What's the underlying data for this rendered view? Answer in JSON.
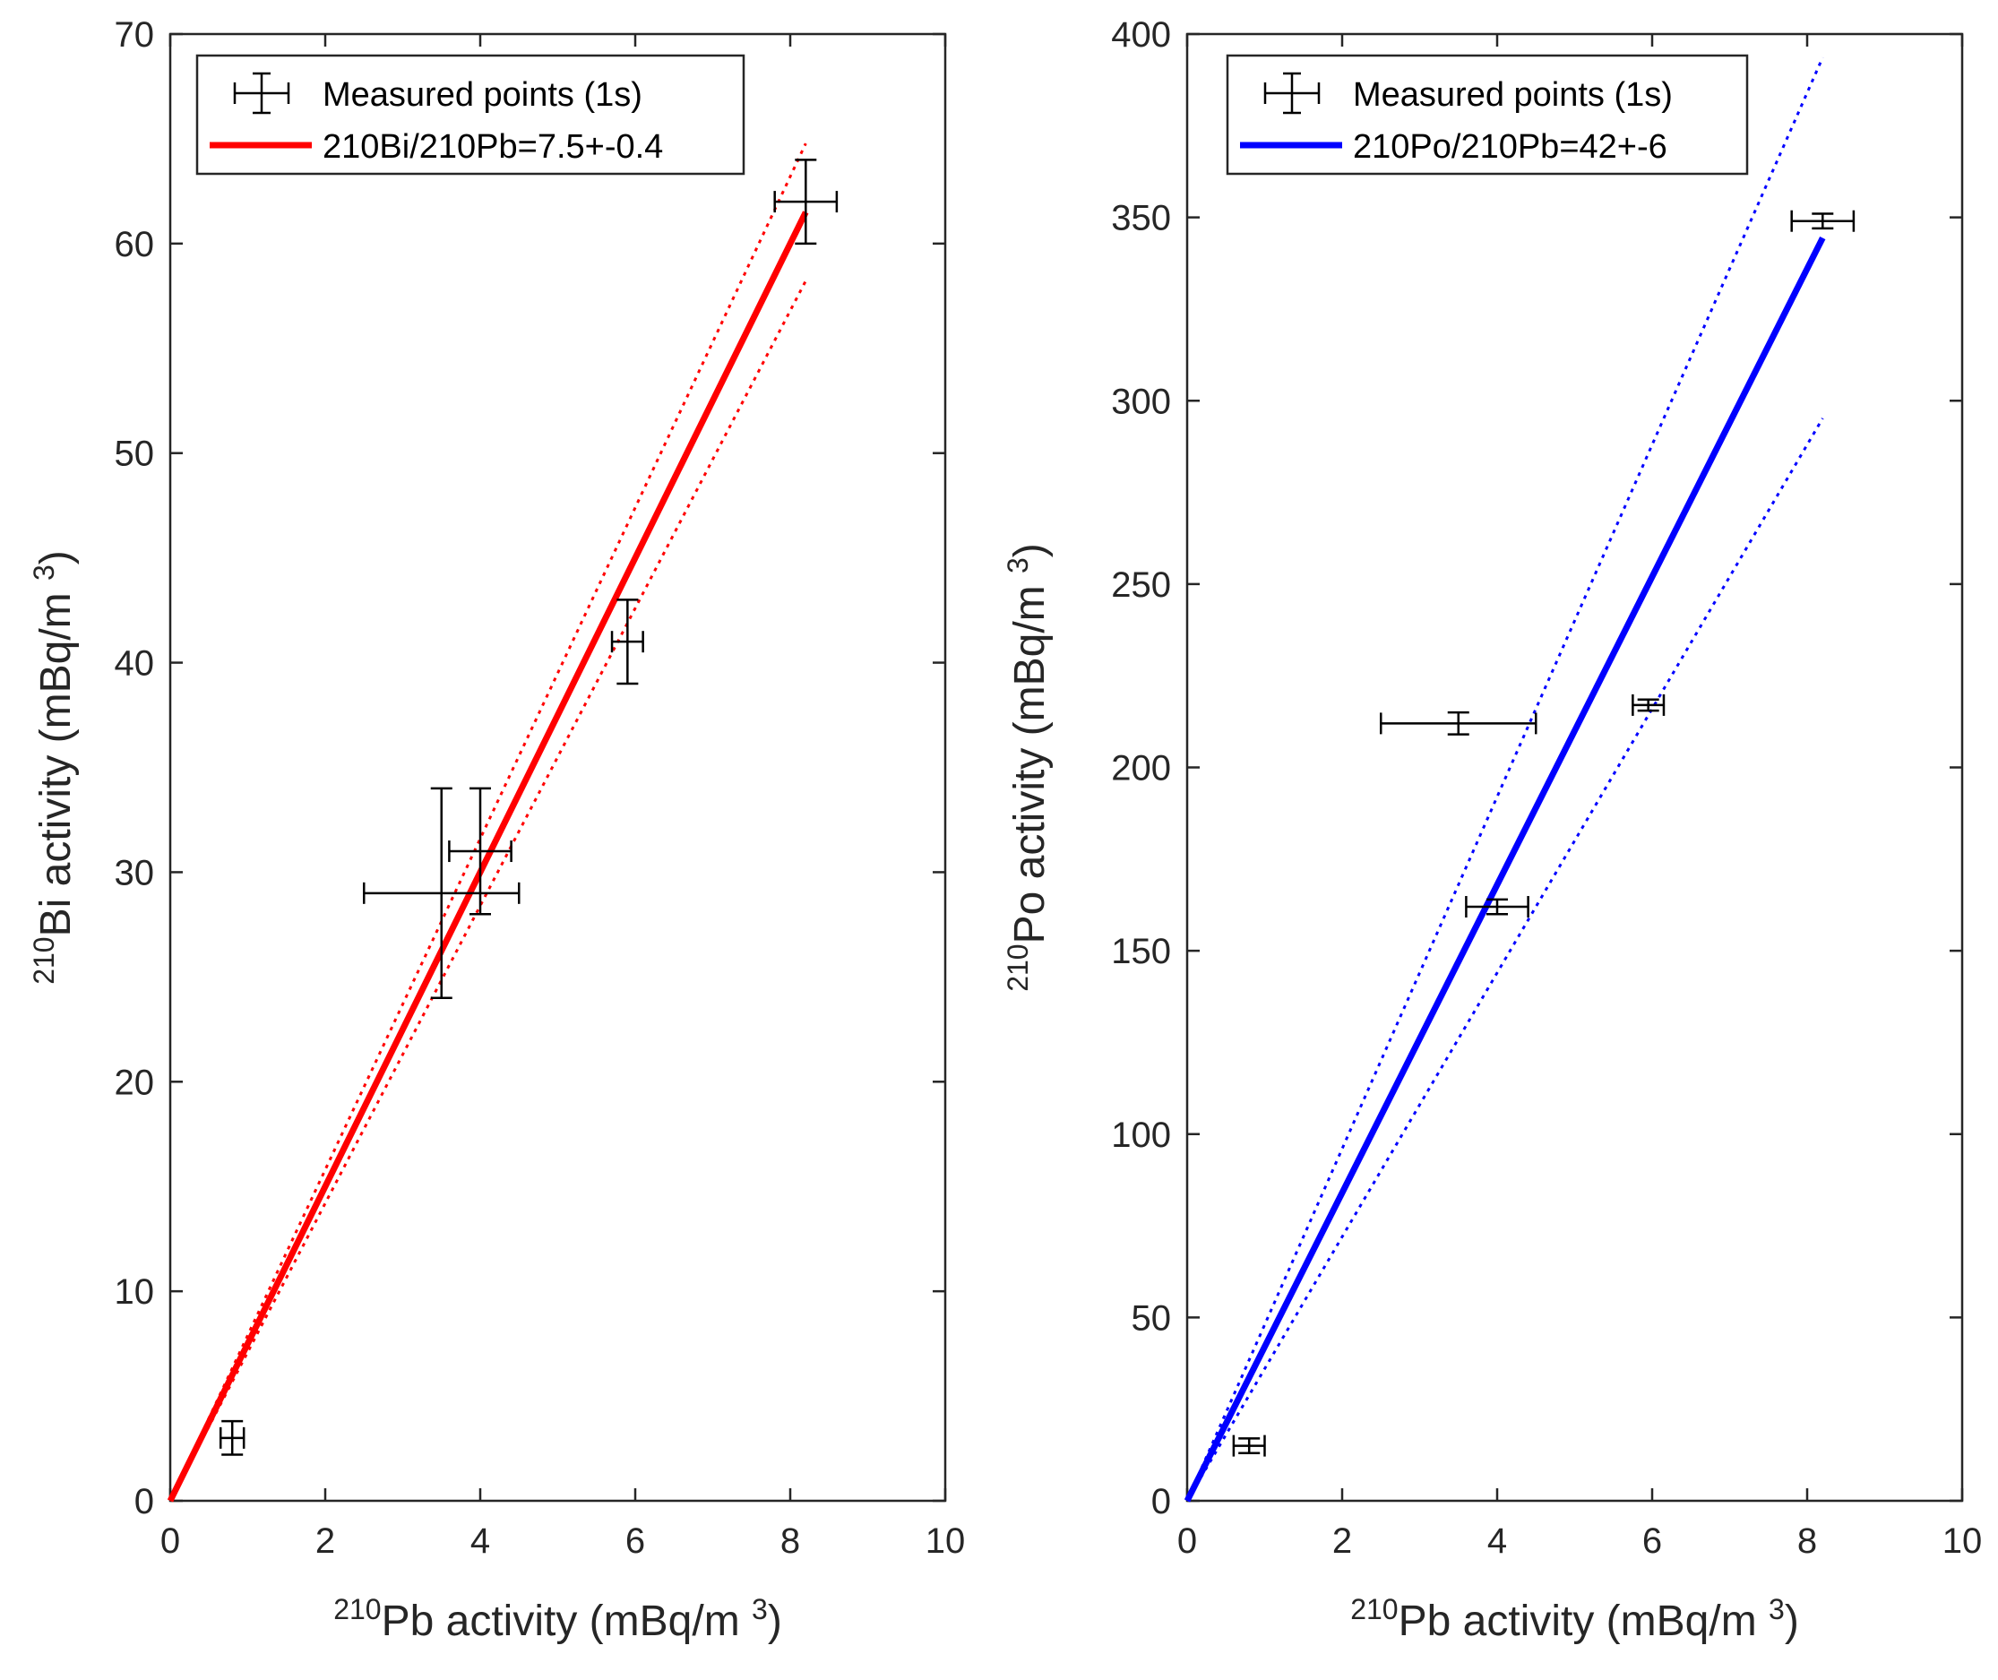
{
  "chart_data": [
    {
      "type": "scatter",
      "xlabel": {
        "sup": "210",
        "main": "Pb activity (mBq/m ",
        "sup2": "3",
        "close": ")"
      },
      "ylabel": {
        "sup": "210",
        "main": "Bi activity (mBq/m ",
        "sup2": "3",
        "close": ")"
      },
      "xlim": [
        0,
        10
      ],
      "ylim": [
        0,
        70
      ],
      "xticks": [
        0,
        2,
        4,
        6,
        8,
        10
      ],
      "yticks": [
        0,
        10,
        20,
        30,
        40,
        50,
        60,
        70
      ],
      "legend_position": "top-left",
      "points": [
        {
          "x": 0.8,
          "y": 3,
          "xerr": 0.15,
          "yerr": 0.8
        },
        {
          "x": 3.5,
          "y": 29,
          "xerr": 1.0,
          "yerr": 5
        },
        {
          "x": 4.0,
          "y": 31,
          "xerr": 0.4,
          "yerr": 3
        },
        {
          "x": 5.9,
          "y": 41,
          "xerr": 0.2,
          "yerr": 2
        },
        {
          "x": 8.2,
          "y": 62,
          "xerr": 0.4,
          "yerr": 2
        }
      ],
      "fit": {
        "label": "210Bi/210Pb=7.5+-0.4",
        "slope": 7.5,
        "slope_upper": 7.9,
        "slope_lower": 7.1,
        "x_end": 8.2,
        "color": "#ff0000"
      },
      "points_label": "Measured points  (1s)"
    },
    {
      "type": "scatter",
      "xlabel": {
        "sup": "210",
        "main": "Pb activity (mBq/m ",
        "sup2": "3",
        "close": ")"
      },
      "ylabel": {
        "sup": "210",
        "main": "Po activity (mBq/m ",
        "sup2": "3",
        "close": ")"
      },
      "xlim": [
        0,
        10
      ],
      "ylim": [
        0,
        400
      ],
      "xticks": [
        0,
        2,
        4,
        6,
        8,
        10
      ],
      "yticks": [
        0,
        50,
        100,
        150,
        200,
        250,
        300,
        350,
        400
      ],
      "legend_position": "top-left",
      "points": [
        {
          "x": 0.8,
          "y": 15,
          "xerr": 0.2,
          "yerr": 2
        },
        {
          "x": 3.5,
          "y": 212,
          "xerr": 1.0,
          "yerr": 3
        },
        {
          "x": 4.0,
          "y": 162,
          "xerr": 0.4,
          "yerr": 2
        },
        {
          "x": 5.95,
          "y": 217,
          "xerr": 0.2,
          "yerr": 1.5
        },
        {
          "x": 8.2,
          "y": 349,
          "xerr": 0.4,
          "yerr": 2
        }
      ],
      "fit": {
        "label": "210Po/210Pb=42+-6",
        "slope": 42,
        "slope_upper": 48,
        "slope_lower": 36,
        "x_end": 8.2,
        "color": "#0000ff"
      },
      "points_label": "Measured points (1s)"
    }
  ]
}
